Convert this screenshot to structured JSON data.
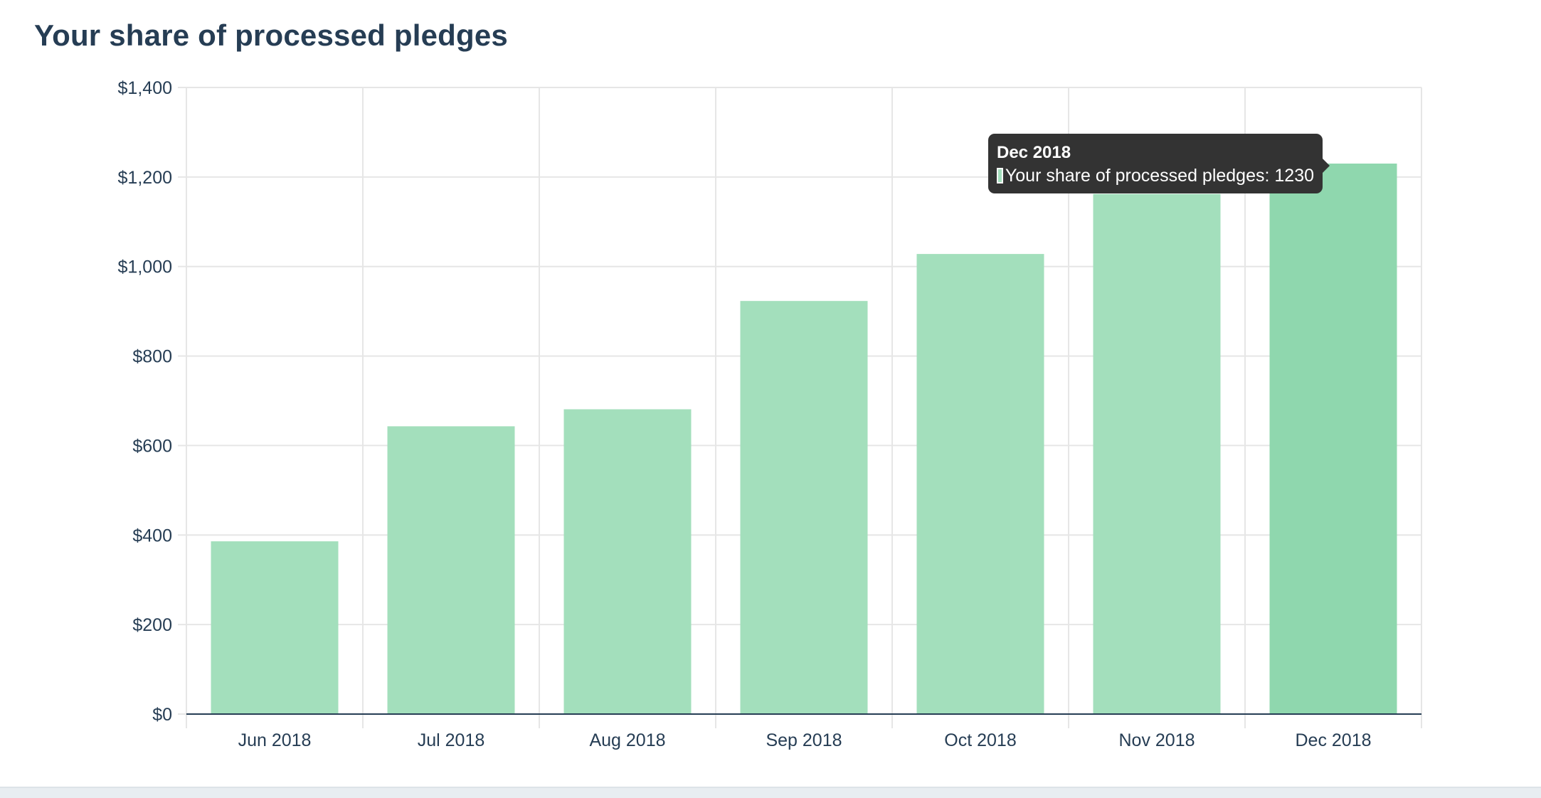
{
  "title": "Your share of processed pledges",
  "colors": {
    "bar": "#a3dfbc",
    "bar_active": "#8fd7ae",
    "grid": "#e6e6e6",
    "axis": "#263d54",
    "text": "#263d54",
    "tooltip_bg": "#333333"
  },
  "chart_data": {
    "type": "bar",
    "categories": [
      "Jun 2018",
      "Jul 2018",
      "Aug 2018",
      "Sep 2018",
      "Oct 2018",
      "Nov 2018",
      "Dec 2018"
    ],
    "series": [
      {
        "name": "Your share of processed pledges",
        "values": [
          386,
          643,
          681,
          923,
          1028,
          1162,
          1230
        ]
      }
    ],
    "y_ticks": [
      "$0",
      "$200",
      "$400",
      "$600",
      "$800",
      "$1,000",
      "$1,200",
      "$1,400"
    ],
    "ylim": [
      0,
      1400
    ],
    "grid": true,
    "active_index": 6
  },
  "tooltip": {
    "title": "Dec 2018",
    "label": "Your share of processed pledges: 1230"
  }
}
